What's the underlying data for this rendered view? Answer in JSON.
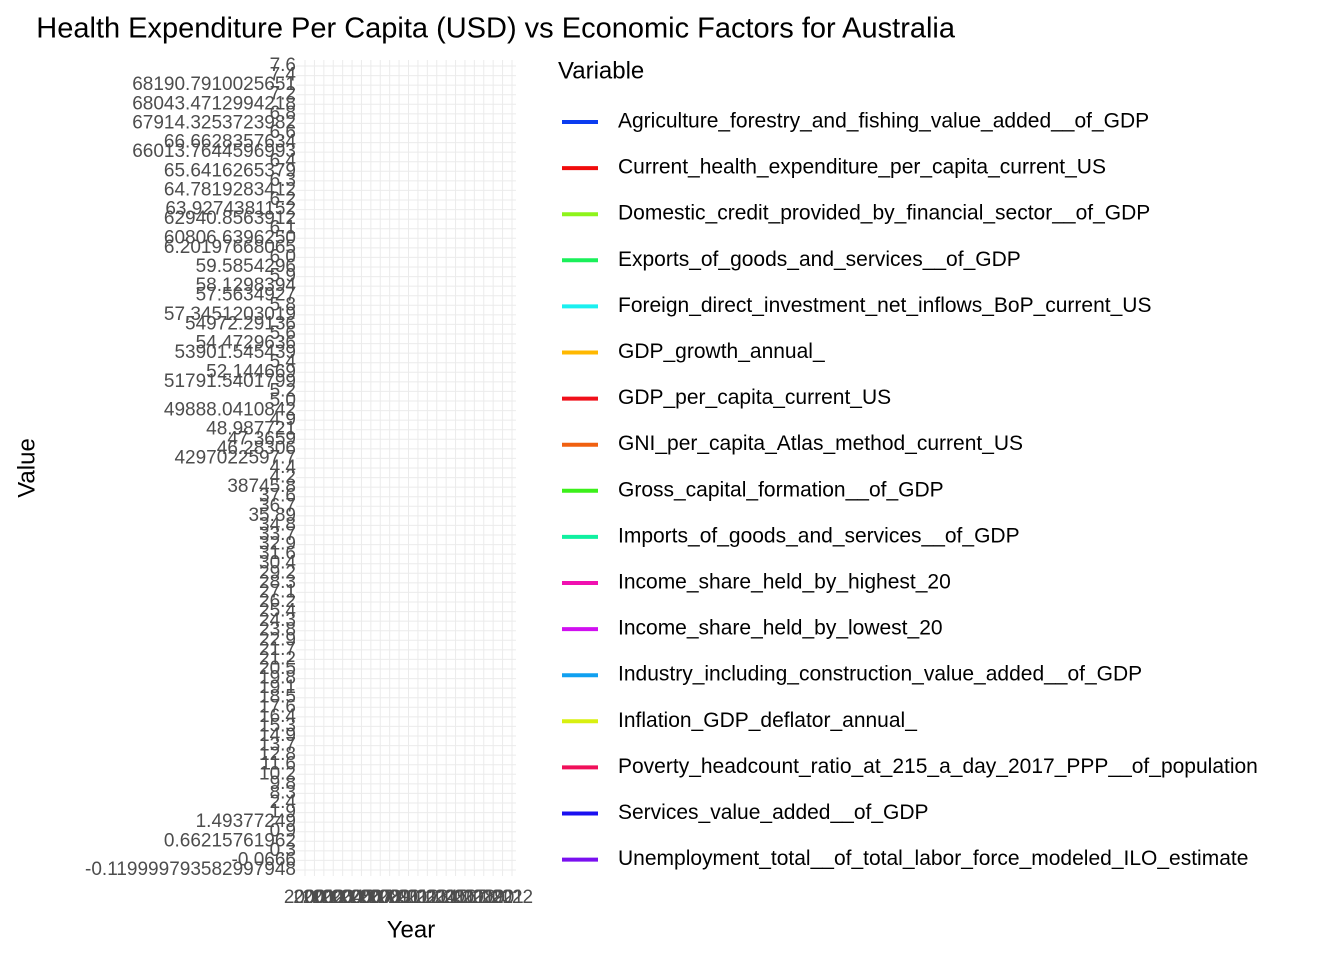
{
  "chart_data": {
    "type": "line",
    "title": "Health Expenditure Per Capita (USD) vs Economic Factors for Australia",
    "x_label": "Year",
    "y_label": "Value",
    "legend_title": "Variable",
    "categories": [
      "2000",
      "2001",
      "2002",
      "2003",
      "2004",
      "2005",
      "2006",
      "2007",
      "2008",
      "2009",
      "2010",
      "2011",
      "2012",
      "2013",
      "2014",
      "2015",
      "2016",
      "2017",
      "2018",
      "2019",
      "2020",
      "2021",
      "2022"
    ],
    "y_categories": [
      "7.6",
      "7.4",
      "68190.7910025651",
      "7.2",
      "68043.4712994218",
      "6.8",
      "67914.3253723982",
      "6.6",
      "66.6628357634",
      "66013.7644596993",
      "6.4",
      "65.6416265379",
      "6.3",
      "64.7819283412",
      "6.2",
      "63.9274381152",
      "62940.8563912",
      "6.1",
      "60806.6396250",
      "6.20197668065",
      "6.0",
      "59.5854296",
      "5.9",
      "58.1298394",
      "57.5634927",
      "5.8",
      "57.3451203019",
      "54972.29136",
      "5.6",
      "54.4729636",
      "53901.545439",
      "5.4",
      "52.144669",
      "51791.5401799",
      "5.2",
      "5.0",
      "49888.0410842",
      "4.9",
      "48.987721",
      "47.3659",
      "46.28306",
      "4297022597.7",
      "4.4",
      "4.2",
      "38745.8",
      "37.6",
      "36.7",
      "35.89",
      "34.8",
      "33.7",
      "32.9",
      "31.6",
      "30.4",
      "29.2",
      "28.3",
      "27.1",
      "26.2",
      "25.4",
      "24.3",
      "23.8",
      "22.9",
      "21.7",
      "21.2",
      "20.5",
      "19.8",
      "19.1",
      "18.5",
      "17.6",
      "16.4",
      "15.3",
      "14.9",
      "13.7",
      "12.8",
      "11.6",
      "10.2",
      "9.8",
      "8.3",
      "2.4",
      "1.9",
      "1.49377249",
      "0.9",
      "0.66215761962",
      "0.3",
      "-0.0666",
      "-0.119999793582997948"
    ],
    "grid": true,
    "series": [
      {
        "name": "Agriculture_forestry_and_fishing_value_added__of_GDP",
        "color": "#0b3cf0"
      },
      {
        "name": "Current_health_expenditure_per_capita_current_US",
        "color": "#f00c0c"
      },
      {
        "name": "Domestic_credit_provided_by_financial_sector__of_GDP",
        "color": "#8ef41a"
      },
      {
        "name": "Exports_of_goods_and_services__of_GDP",
        "color": "#1af05a"
      },
      {
        "name": "Foreign_direct_investment_net_inflows_BoP_current_US",
        "color": "#1af0f0"
      },
      {
        "name": "GDP_growth_annual_",
        "color": "#ffb800"
      },
      {
        "name": "GDP_per_capita_current_US",
        "color": "#f0101a"
      },
      {
        "name": "GNI_per_capita_Atlas_method_current_US",
        "color": "#f06010"
      },
      {
        "name": "Gross_capital_formation__of_GDP",
        "color": "#3cf01a"
      },
      {
        "name": "Imports_of_goods_and_services__of_GDP",
        "color": "#10f0a0"
      },
      {
        "name": "Income_share_held_by_highest_20",
        "color": "#f010b0"
      },
      {
        "name": "Income_share_held_by_lowest_20",
        "color": "#d010f0"
      },
      {
        "name": "Industry_including_construction_value_added__of_GDP",
        "color": "#10a0f0"
      },
      {
        "name": "Inflation_GDP_deflator_annual_",
        "color": "#d8f010"
      },
      {
        "name": "Poverty_headcount_ratio_at_215_a_day_2017_PPP__of_population",
        "color": "#f0105a"
      },
      {
        "name": "Services_value_added__of_GDP",
        "color": "#1a10f0"
      },
      {
        "name": "Unemployment_total__of_total_labor_force_modeled_ILO_estimate",
        "color": "#7a10f0"
      }
    ]
  }
}
